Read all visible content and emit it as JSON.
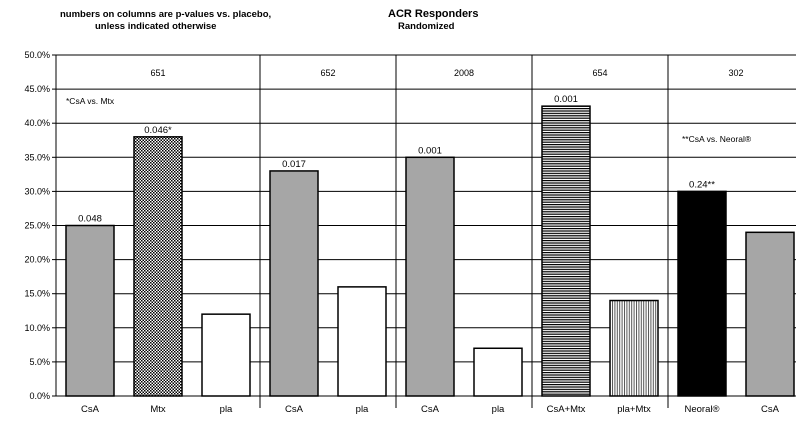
{
  "header": {
    "note_line1": "numbers on columns are p-values vs. placebo,",
    "note_line2": "unless indicated otherwise",
    "title": "ACR Responders",
    "subtitle": "Randomized"
  },
  "chart_data": {
    "type": "bar",
    "title": "ACR Responders",
    "subtitle": "Randomized",
    "xlabel": "",
    "ylabel": "",
    "ylim": [
      0,
      50
    ],
    "y_tick_step": 5,
    "y_tick_format": "percent_1dp",
    "grid": true,
    "legend": "none",
    "categories": [
      "CsA",
      "Mtx",
      "pla",
      "CsA",
      "pla",
      "CsA",
      "pla",
      "CsA+Mtx",
      "pla+Mtx",
      "Neoral®",
      "CsA"
    ],
    "values": [
      25,
      38,
      12,
      33,
      16,
      35,
      7,
      42.5,
      14,
      30,
      24
    ],
    "bar_labels": [
      "0.048",
      "0.046*",
      "",
      "0.017",
      "",
      "0.001",
      "",
      "0.001",
      "",
      "0.24**",
      ""
    ],
    "fills": [
      "gray",
      "check",
      "white",
      "gray",
      "white",
      "gray",
      "white",
      "hstripe",
      "vstripe",
      "black",
      "gray"
    ],
    "studies": [
      {
        "label": "651",
        "start": 0,
        "end": 2
      },
      {
        "label": "652",
        "start": 3,
        "end": 4
      },
      {
        "label": "2008",
        "start": 5,
        "end": 6
      },
      {
        "label": "654",
        "start": 7,
        "end": 8
      },
      {
        "label": "302",
        "start": 9,
        "end": 10
      }
    ],
    "annotations": {
      "csa_vs_mtx": "*CsA vs. Mtx",
      "csa_vs_neoral": "**CsA vs. Neoral®"
    },
    "colors": {
      "gray": "#a6a6a6",
      "black": "#000000",
      "white": "#ffffff",
      "grid": "#000000"
    }
  }
}
